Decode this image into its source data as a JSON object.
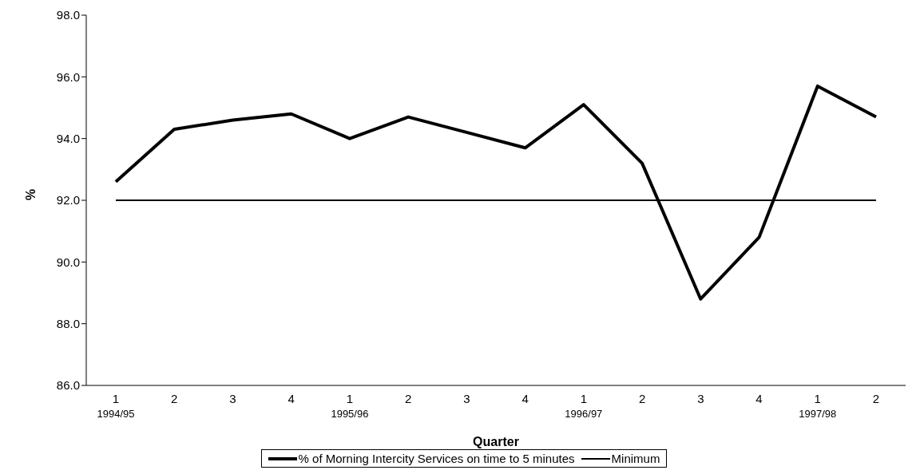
{
  "chart_data": {
    "type": "line",
    "xlabel": "Quarter",
    "ylabel": "%",
    "categories": [
      "1\n1994/95",
      "2",
      "3",
      "4",
      "1\n1995/96",
      "2",
      "3",
      "4",
      "1\n1996/97",
      "2",
      "3",
      "4",
      "1\n1997/98",
      "2"
    ],
    "series": [
      {
        "name": "% of Morning Intercity Services on time to 5 minutes",
        "color": "#000000",
        "values": [
          92.6,
          94.3,
          94.6,
          94.8,
          94.0,
          94.7,
          94.2,
          93.7,
          95.1,
          93.2,
          88.8,
          90.8,
          95.7,
          94.7
        ]
      },
      {
        "name": "Minimum",
        "color": "#000000",
        "values": [
          92.0,
          92.0,
          92.0,
          92.0,
          92.0,
          92.0,
          92.0,
          92.0,
          92.0,
          92.0,
          92.0,
          92.0,
          92.0,
          92.0
        ]
      }
    ],
    "ylim": [
      86,
      98
    ],
    "yticks": [
      {
        "value": 86,
        "label": "86.0"
      },
      {
        "value": 88,
        "label": "88.0"
      },
      {
        "value": 90,
        "label": "90.0"
      },
      {
        "value": 92,
        "label": "92.0"
      },
      {
        "value": 94,
        "label": "94.0"
      },
      {
        "value": 96,
        "label": "96.0"
      },
      {
        "value": 98,
        "label": "98.0"
      }
    ],
    "grid": false,
    "legend": "bottom",
    "marker": "none",
    "line_style": "solid"
  }
}
